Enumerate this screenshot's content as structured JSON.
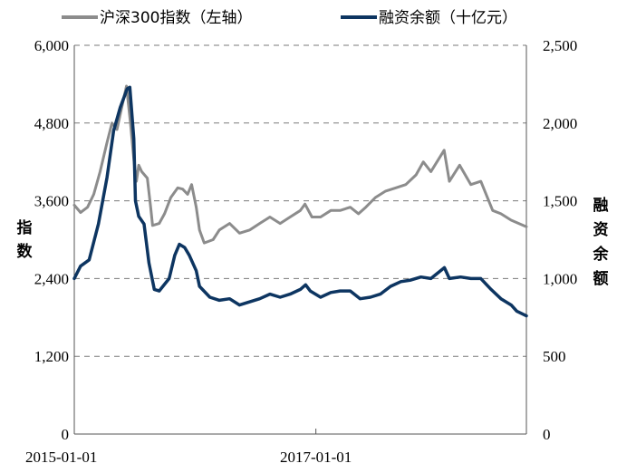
{
  "chart_data": {
    "type": "line",
    "legend_position": "top",
    "grid": "horizontal-dashed",
    "x_range": [
      "2015-01-01",
      "2018-09-30"
    ],
    "x_tick_labels": [
      "2015-01-01",
      "2017-01-01"
    ],
    "x_ticks": [
      "2015-01-01",
      "2017-01-01"
    ],
    "y_left": {
      "title": [
        "指",
        "数"
      ],
      "range": [
        0,
        6000
      ],
      "tick_labels": [
        "0",
        "1,200",
        "2,400",
        "3,600",
        "4,800",
        "6,000"
      ],
      "tick_values": [
        0,
        1200,
        2400,
        3600,
        4800,
        6000
      ]
    },
    "y_right": {
      "title": [
        "融",
        "资",
        "余",
        "额"
      ],
      "range": [
        0,
        2500
      ],
      "tick_labels": [
        "0",
        "500",
        "1,000",
        "1,500",
        "2,000",
        "2,500"
      ],
      "tick_values": [
        0,
        500,
        1000,
        1500,
        2000,
        2500
      ]
    },
    "series": [
      {
        "name": "沪深300指数（左轴）",
        "axis": "left",
        "color": "#8c8c8c",
        "points": [
          [
            "2015-01-01",
            3533
          ],
          [
            "2015-01-20",
            3420
          ],
          [
            "2015-02-10",
            3500
          ],
          [
            "2015-03-01",
            3700
          ],
          [
            "2015-03-20",
            4050
          ],
          [
            "2015-04-10",
            4500
          ],
          [
            "2015-04-25",
            4800
          ],
          [
            "2015-05-10",
            4700
          ],
          [
            "2015-05-25",
            5050
          ],
          [
            "2015-06-08",
            5370
          ],
          [
            "2015-06-20",
            4800
          ],
          [
            "2015-07-01",
            4200
          ],
          [
            "2015-07-08",
            3900
          ],
          [
            "2015-07-15",
            4150
          ],
          [
            "2015-07-24",
            4050
          ],
          [
            "2015-08-10",
            3950
          ],
          [
            "2015-08-20",
            3500
          ],
          [
            "2015-08-26",
            3220
          ],
          [
            "2015-09-15",
            3250
          ],
          [
            "2015-10-01",
            3400
          ],
          [
            "2015-10-20",
            3650
          ],
          [
            "2015-11-10",
            3800
          ],
          [
            "2015-11-25",
            3780
          ],
          [
            "2015-12-10",
            3700
          ],
          [
            "2015-12-22",
            3850
          ],
          [
            "2016-01-05",
            3500
          ],
          [
            "2016-01-15",
            3150
          ],
          [
            "2016-01-29",
            2950
          ],
          [
            "2016-02-25",
            3000
          ],
          [
            "2016-03-15",
            3150
          ],
          [
            "2016-04-15",
            3250
          ],
          [
            "2016-05-15",
            3100
          ],
          [
            "2016-06-15",
            3150
          ],
          [
            "2016-07-15",
            3250
          ],
          [
            "2016-08-15",
            3350
          ],
          [
            "2016-09-15",
            3250
          ],
          [
            "2016-10-15",
            3350
          ],
          [
            "2016-11-15",
            3450
          ],
          [
            "2016-11-29",
            3550
          ],
          [
            "2016-12-20",
            3350
          ],
          [
            "2017-01-15",
            3350
          ],
          [
            "2017-02-15",
            3450
          ],
          [
            "2017-03-15",
            3450
          ],
          [
            "2017-04-15",
            3500
          ],
          [
            "2017-05-10",
            3400
          ],
          [
            "2017-06-01",
            3500
          ],
          [
            "2017-06-30",
            3650
          ],
          [
            "2017-07-31",
            3750
          ],
          [
            "2017-08-31",
            3800
          ],
          [
            "2017-09-30",
            3850
          ],
          [
            "2017-10-31",
            4000
          ],
          [
            "2017-11-22",
            4200
          ],
          [
            "2017-12-15",
            4050
          ],
          [
            "2018-01-24",
            4380
          ],
          [
            "2018-02-09",
            3900
          ],
          [
            "2018-03-12",
            4150
          ],
          [
            "2018-04-15",
            3850
          ],
          [
            "2018-05-15",
            3900
          ],
          [
            "2018-06-20",
            3450
          ],
          [
            "2018-07-15",
            3400
          ],
          [
            "2018-08-15",
            3300
          ],
          [
            "2018-09-30",
            3200
          ]
        ]
      },
      {
        "name": "融资余额（十亿元）",
        "axis": "right",
        "color": "#0d3561",
        "points": [
          [
            "2015-01-01",
            1000
          ],
          [
            "2015-01-20",
            1080
          ],
          [
            "2015-02-15",
            1120
          ],
          [
            "2015-03-15",
            1350
          ],
          [
            "2015-04-10",
            1650
          ],
          [
            "2015-04-30",
            1950
          ],
          [
            "2015-05-20",
            2100
          ],
          [
            "2015-06-10",
            2220
          ],
          [
            "2015-06-18",
            2230
          ],
          [
            "2015-06-30",
            1900
          ],
          [
            "2015-07-05",
            1500
          ],
          [
            "2015-07-15",
            1400
          ],
          [
            "2015-07-31",
            1350
          ],
          [
            "2015-08-15",
            1100
          ],
          [
            "2015-08-31",
            930
          ],
          [
            "2015-09-15",
            920
          ],
          [
            "2015-10-15",
            1000
          ],
          [
            "2015-11-01",
            1150
          ],
          [
            "2015-11-15",
            1220
          ],
          [
            "2015-12-01",
            1200
          ],
          [
            "2015-12-15",
            1150
          ],
          [
            "2016-01-05",
            1050
          ],
          [
            "2016-01-15",
            950
          ],
          [
            "2016-02-15",
            880
          ],
          [
            "2016-03-15",
            860
          ],
          [
            "2016-04-15",
            870
          ],
          [
            "2016-05-15",
            830
          ],
          [
            "2016-06-15",
            850
          ],
          [
            "2016-07-15",
            870
          ],
          [
            "2016-08-15",
            900
          ],
          [
            "2016-09-15",
            880
          ],
          [
            "2016-10-15",
            900
          ],
          [
            "2016-11-15",
            930
          ],
          [
            "2016-12-01",
            960
          ],
          [
            "2016-12-15",
            920
          ],
          [
            "2017-01-15",
            880
          ],
          [
            "2017-02-15",
            910
          ],
          [
            "2017-03-15",
            920
          ],
          [
            "2017-04-15",
            920
          ],
          [
            "2017-05-15",
            870
          ],
          [
            "2017-06-15",
            880
          ],
          [
            "2017-07-15",
            900
          ],
          [
            "2017-08-15",
            950
          ],
          [
            "2017-09-15",
            980
          ],
          [
            "2017-10-15",
            990
          ],
          [
            "2017-11-15",
            1010
          ],
          [
            "2017-12-15",
            1000
          ],
          [
            "2018-01-25",
            1070
          ],
          [
            "2018-02-09",
            1000
          ],
          [
            "2018-03-15",
            1010
          ],
          [
            "2018-04-15",
            1000
          ],
          [
            "2018-05-15",
            1000
          ],
          [
            "2018-06-15",
            930
          ],
          [
            "2018-07-15",
            870
          ],
          [
            "2018-08-15",
            830
          ],
          [
            "2018-09-01",
            790
          ],
          [
            "2018-09-30",
            760
          ]
        ]
      }
    ]
  }
}
